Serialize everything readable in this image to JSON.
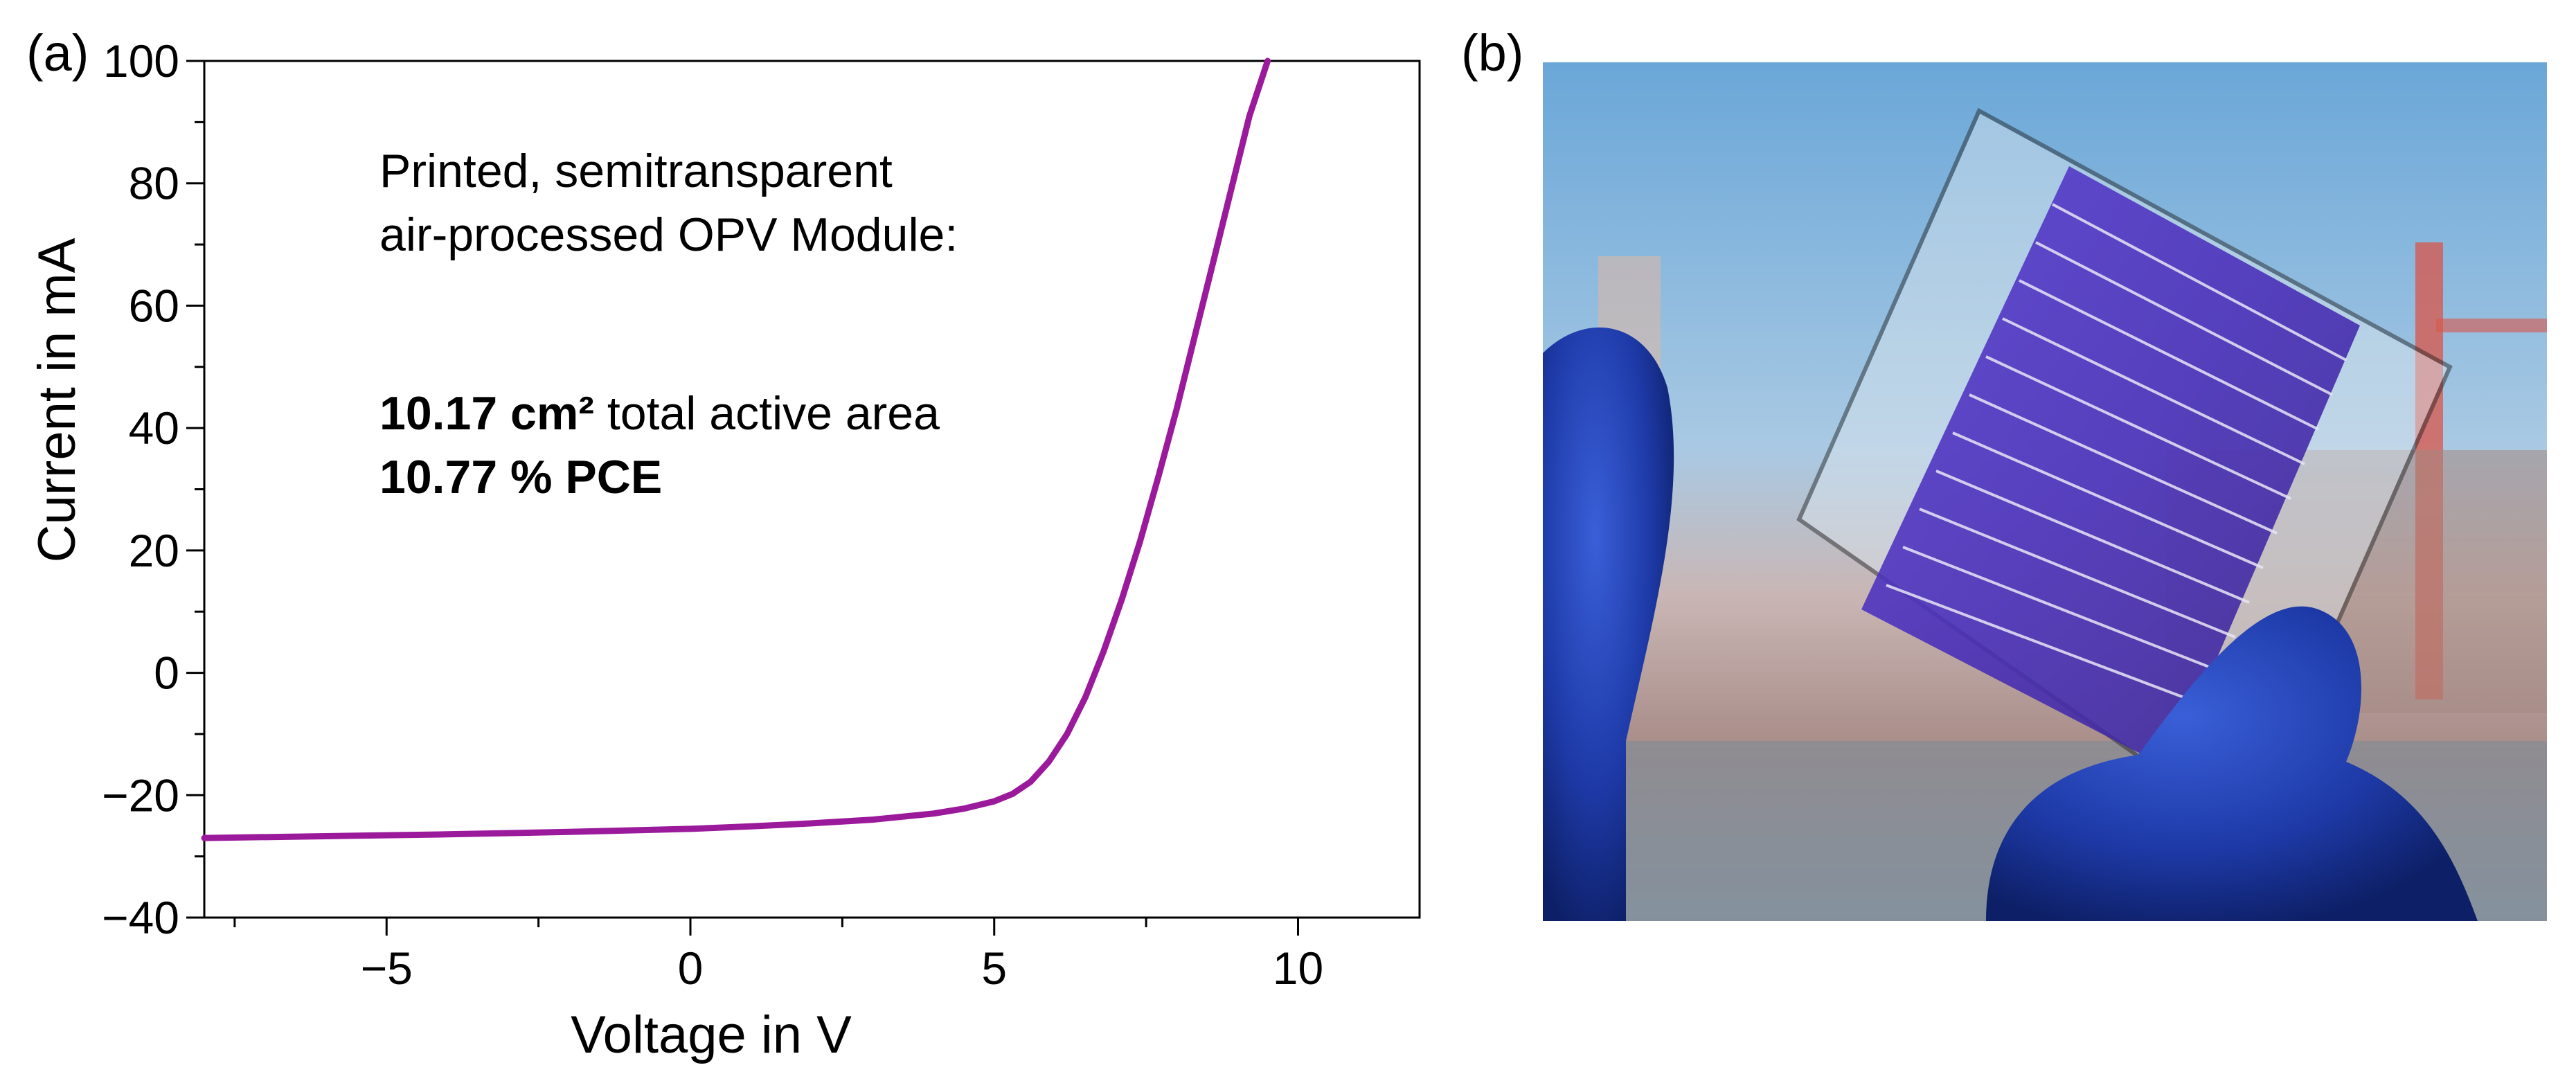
{
  "panels": {
    "a_label": "(a)",
    "b_label": "(b)"
  },
  "annotation": {
    "line1": "Printed, semitransparent",
    "line2": "air-processed OPV Module:",
    "area_value": "10.17 cm²",
    "area_text": " total active area",
    "pce": "10.77 % PCE"
  },
  "colors": {
    "curve": "#9b1a9b",
    "pce_text": "#8e1a96"
  },
  "chart_data": {
    "type": "line",
    "title": "",
    "xlabel": "Voltage in V",
    "ylabel": "Current in mA",
    "xlim": [
      -8,
      12
    ],
    "ylim": [
      -40,
      100
    ],
    "xticks": [
      -5,
      0,
      5,
      10
    ],
    "xtick_labels": [
      "−5",
      "0",
      "5",
      "10"
    ],
    "yticks": [
      -40,
      -20,
      0,
      20,
      40,
      60,
      80,
      100
    ],
    "ytick_labels": [
      "−40",
      "−20",
      "0",
      "20",
      "40",
      "60",
      "80",
      "100"
    ],
    "grid": false,
    "series": [
      {
        "x": [
          -8,
          -6,
          -4,
          -2,
          0,
          1,
          2,
          3,
          4,
          4.5,
          5,
          5.3,
          5.6,
          5.9,
          6.2,
          6.5,
          6.8,
          7.1,
          7.4,
          7.7,
          8.0,
          8.3,
          8.6,
          8.9,
          9.2,
          9.5
        ],
        "y": [
          -27,
          -26.7,
          -26.4,
          -26,
          -25.5,
          -25.1,
          -24.6,
          -24,
          -23,
          -22.2,
          -21,
          -19.8,
          -17.8,
          -14.5,
          -10,
          -4,
          3.5,
          12,
          21.5,
          32,
          43,
          55,
          67,
          79,
          91,
          100
        ]
      }
    ]
  },
  "photo": {
    "description_icon": "opv-module-photo"
  }
}
